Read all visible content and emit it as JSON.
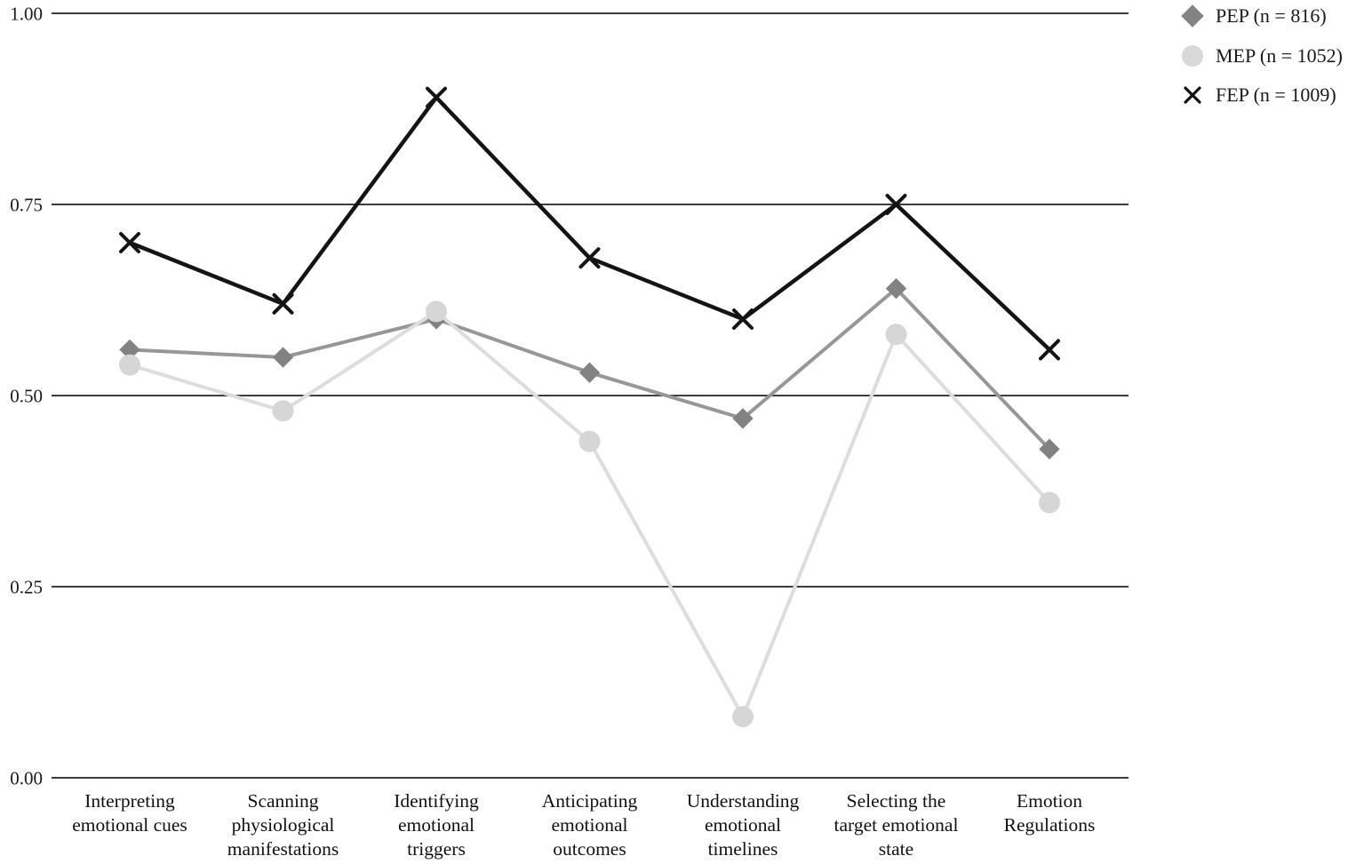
{
  "figure": {
    "background": "#ffffff",
    "text_color": "#1a1a1a",
    "gridline_color": "#3d3d3d"
  },
  "legend": {
    "position": "top-right",
    "items": [
      {
        "label": "PEP (n = 816)",
        "marker": "diamond",
        "color": "#838383"
      },
      {
        "label": "MEP (n = 1052)",
        "marker": "circle",
        "color": "#d8d8d8"
      },
      {
        "label": "FEP (n = 1009)",
        "marker": "x",
        "color": "#121212"
      }
    ]
  },
  "chart_data": {
    "type": "line",
    "title": "",
    "xlabel": "",
    "ylabel": "",
    "categories": [
      "Interpreting\nemotional cues",
      "Scanning\nphysiological\nmanifestations",
      "Identifying\nemotional\ntriggers",
      "Anticipating\nemotional\noutcomes",
      "Understanding\nemotional\ntimelines",
      "Selecting the\ntarget emotional\nstate",
      "Emotion\nRegulations"
    ],
    "series": [
      {
        "name": "PEP",
        "label": "PEP (n = 816)",
        "n": 816,
        "marker": "diamond",
        "line_color": "#979797",
        "marker_color": "#828282",
        "line_width": 4,
        "values": [
          0.56,
          0.55,
          0.6,
          0.53,
          0.47,
          0.64,
          0.43
        ]
      },
      {
        "name": "MEP",
        "label": "MEP (n = 1052)",
        "n": 1052,
        "marker": "circle",
        "line_color": "#dddddd",
        "marker_color": "#d6d6d6",
        "line_width": 4,
        "values": [
          0.54,
          0.48,
          0.61,
          0.44,
          0.08,
          0.58,
          0.36
        ]
      },
      {
        "name": "FEP",
        "label": "FEP (n = 1009)",
        "n": 1009,
        "marker": "x",
        "line_color": "#141414",
        "marker_color": "#141414",
        "line_width": 4.5,
        "values": [
          0.7,
          0.62,
          0.89,
          0.68,
          0.6,
          0.75,
          0.56
        ]
      }
    ],
    "ylim": [
      0,
      1
    ],
    "yticks": [
      0,
      0.25,
      0.5,
      0.75,
      1
    ],
    "ytick_labels": [
      "0.00",
      "0.25",
      "0.50",
      "0.75",
      "1.00"
    ],
    "grid": "horizontal",
    "legend_position": "top-right"
  }
}
